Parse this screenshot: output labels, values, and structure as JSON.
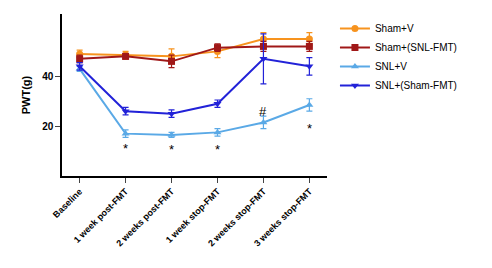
{
  "chart_data": {
    "type": "line",
    "y_label": "PWT(g)",
    "categories": [
      "Baseline",
      "1 week post-FMT",
      "2 weeks post-FMT",
      "1 week stop-FMT",
      "2 weeks stop-FMT",
      "3 weeks stop-FMT"
    ],
    "series": [
      {
        "name": "Sham+V",
        "color": "#f7931e",
        "marker": "circle",
        "values": [
          49,
          48.5,
          48,
          50,
          55,
          55
        ],
        "errors": [
          1.5,
          1.5,
          3,
          2.5,
          2.5,
          2.5
        ]
      },
      {
        "name": "Sham+(SNL-FMT)",
        "color": "#a01818",
        "marker": "square",
        "values": [
          47,
          48,
          46,
          51.5,
          52,
          52
        ],
        "errors": [
          1.5,
          1,
          2.5,
          1.5,
          2,
          2
        ]
      },
      {
        "name": "SNL+V",
        "color": "#5aa9e6",
        "marker": "triangle-up",
        "values": [
          43,
          17,
          16.5,
          17.5,
          21.5,
          28.5
        ],
        "errors": [
          1,
          1.5,
          1,
          1.5,
          2.5,
          2.5
        ]
      },
      {
        "name": "SNL+(Sham-FMT)",
        "color": "#2222d8",
        "marker": "triangle-down",
        "values": [
          44,
          26,
          25,
          29,
          47,
          44
        ],
        "errors": [
          1.5,
          1.5,
          1.5,
          1.5,
          10,
          3.5
        ]
      }
    ],
    "ylim": [
      0,
      65
    ],
    "yticks": [
      20,
      40
    ],
    "grid": false,
    "legend": "right",
    "annotations": [
      {
        "text": "*",
        "category": "1 week post-FMT",
        "y": 11
      },
      {
        "text": "*",
        "category": "2 weeks post-FMT",
        "y": 10.5
      },
      {
        "text": "*",
        "category": "1 week stop-FMT",
        "y": 10.5
      },
      {
        "text": "#",
        "category": "2 weeks stop-FMT",
        "y": 26
      },
      {
        "text": "*",
        "category": "3 weeks stop-FMT",
        "y": 19
      }
    ]
  }
}
